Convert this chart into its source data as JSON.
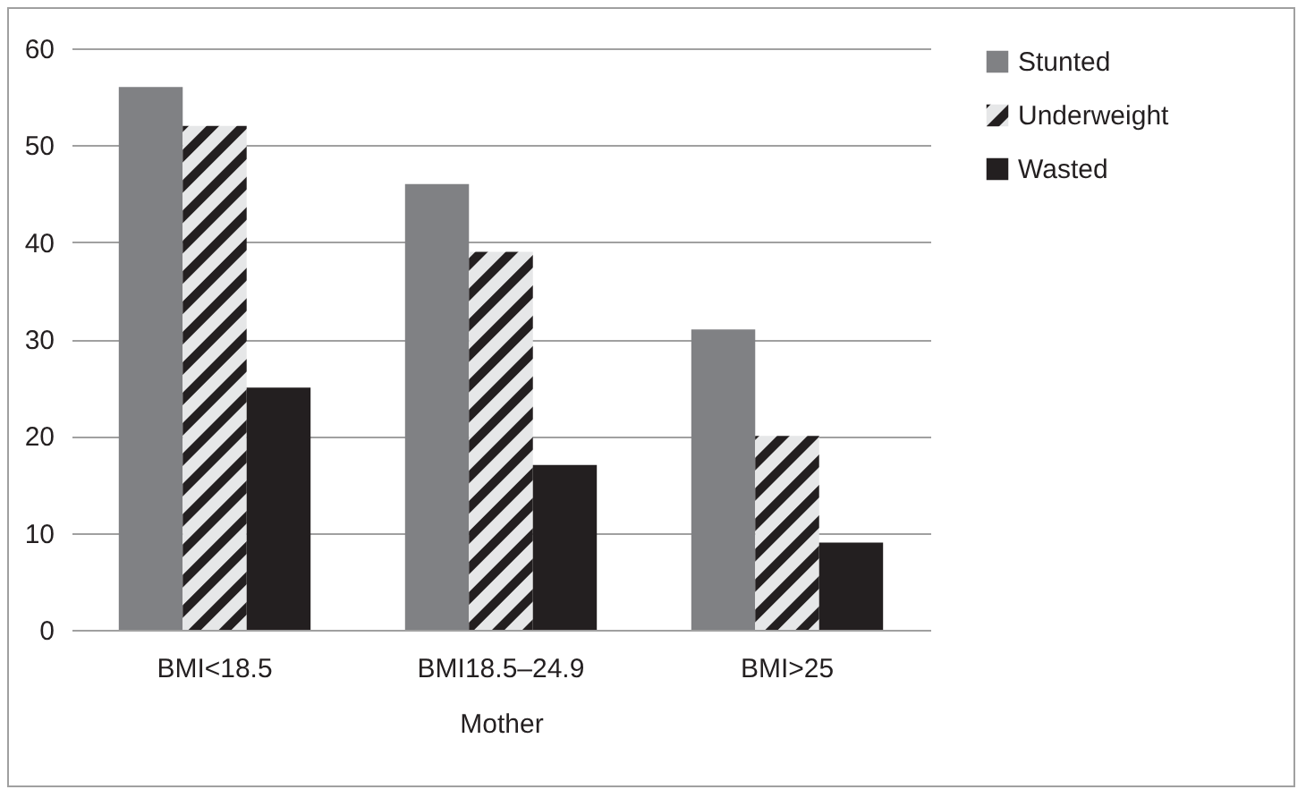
{
  "chart_data": {
    "type": "bar",
    "xlabel": "Mother",
    "categories": [
      "BMI<18.5",
      "BMI18.5–24.9",
      "BMI>25"
    ],
    "series": [
      {
        "name": "Stunted",
        "color": "#808184",
        "values": [
          56,
          46,
          31
        ]
      },
      {
        "name": "Underweight",
        "color": "#e6e7e8",
        "values": [
          52,
          39,
          20
        ]
      },
      {
        "name": "Wasted",
        "color": "#231f20",
        "values": [
          25,
          17,
          9
        ]
      }
    ],
    "ylim": [
      0,
      60
    ],
    "yticks": [
      0,
      10,
      20,
      30,
      40,
      50,
      60
    ],
    "grid": "y",
    "legend": "right"
  }
}
